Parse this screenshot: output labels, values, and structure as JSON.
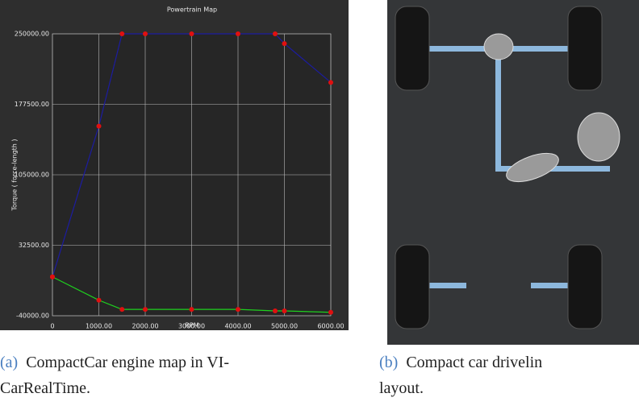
{
  "figure_a": {
    "label": "(a)",
    "caption_lines": [
      "CompactCar engine map in VI-",
      "CarRealTime."
    ]
  },
  "figure_b": {
    "label": "(b)",
    "caption_lines": [
      "Compact car drivelin",
      "layout."
    ]
  },
  "chart_data": {
    "type": "line",
    "title": "Powertrain Map",
    "x_label": "RPM",
    "y_label": "Torque ( force-length )",
    "x": [
      0,
      1000,
      1500,
      2000,
      3000,
      4000,
      4800,
      5000,
      6000
    ],
    "series": [
      {
        "color": "#1c1ca0",
        "values": [
          0,
          155000,
          250000,
          250000,
          250000,
          250000,
          250000,
          240000,
          200000
        ]
      },
      {
        "color": "#1fd01f",
        "values": [
          0,
          -24000,
          -33500,
          -33500,
          -33500,
          -33500,
          -35000,
          -35000,
          -36500
        ]
      }
    ],
    "marker_color": "#e01010",
    "xlim": [
      0,
      6000
    ],
    "xticks": [
      0,
      {
        "value": 1000,
        "label": "1000.00"
      },
      {
        "value": 2000,
        "label": "2000.00"
      },
      {
        "value": 3000,
        "label": "3000.00"
      },
      {
        "value": 4000,
        "label": "4000.00"
      },
      {
        "value": 5000,
        "label": "5000.00"
      },
      {
        "value": 6000,
        "label": "6000.00"
      }
    ],
    "ylim": [
      -40000,
      250000
    ],
    "yticks": [
      {
        "value": -40000,
        "label": "-40000.00"
      },
      {
        "value": 32500,
        "label": "32500.00"
      },
      {
        "value": 105000,
        "label": "105000.00"
      },
      {
        "value": 177500,
        "label": "177500.00"
      },
      {
        "value": 250000,
        "label": "250000.00"
      }
    ],
    "grid": true
  }
}
